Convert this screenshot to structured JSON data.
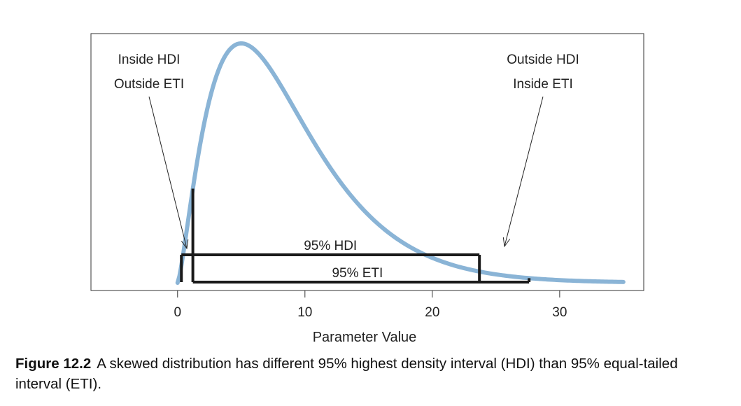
{
  "chart_data": {
    "type": "line",
    "xlabel": "Parameter Value",
    "ylabel": "",
    "xlim": [
      -6.8,
      36.6
    ],
    "ylim": [
      0,
      1
    ],
    "xticks": [
      0,
      10,
      20,
      30
    ],
    "grid": false,
    "distribution": {
      "name": "gamma",
      "shape": 2.4,
      "scale": 3.57,
      "x_range": [
        0,
        35
      ],
      "color": "#8ab4d6"
    },
    "intervals": [
      {
        "label": "95% HDI",
        "lo": 0.3,
        "hi": 23.7,
        "level": 0.103
      },
      {
        "label": "95% ETI",
        "lo": 1.2,
        "hi": 27.6,
        "level": 0.0
      }
    ],
    "annotations": [
      {
        "lines": [
          "Inside HDI",
          "Outside ETI"
        ],
        "target_x": 0.8
      },
      {
        "lines": [
          "Outside HDI",
          "Inside ETI"
        ],
        "target_x": 25.5
      }
    ]
  },
  "caption": {
    "label": "Figure 12.2",
    "text": "A skewed distribution has different 95% highest density interval (HDI) than 95% equal-tailed interval (ETI)."
  }
}
